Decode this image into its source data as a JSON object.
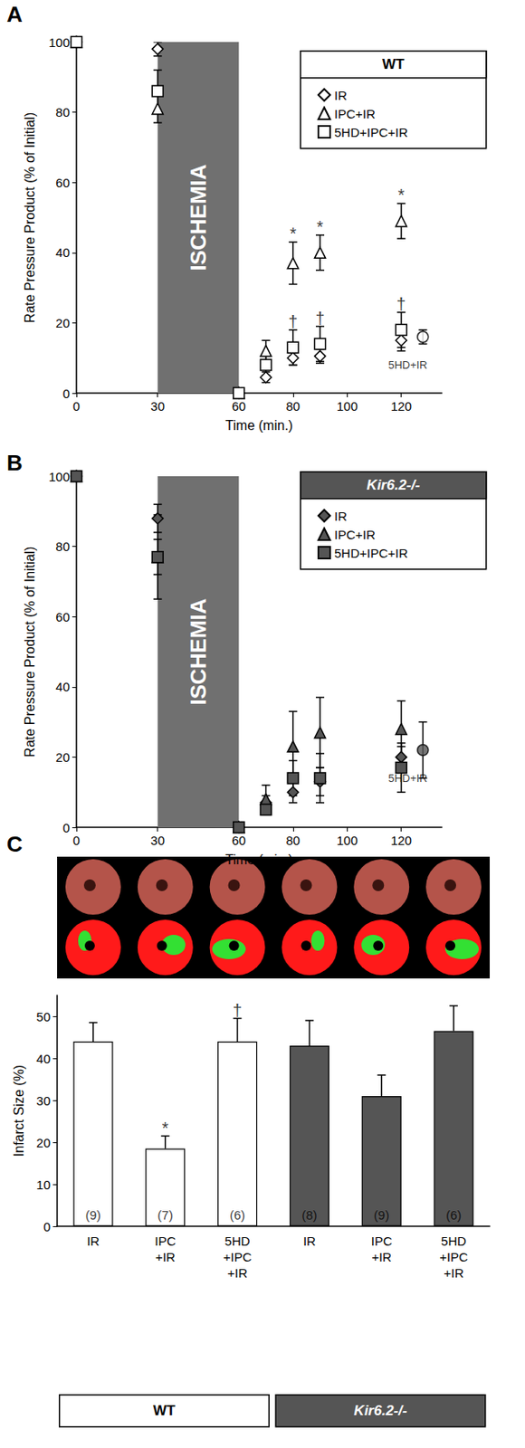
{
  "chart_data": [
    {
      "panel": "A",
      "type": "scatter",
      "legend_title": "WT",
      "legend": "upper right",
      "grid": false,
      "x_label": "Time (min.)",
      "y_label": "Rate Pressure Product (% of Initial)",
      "xlim": [
        0,
        135
      ],
      "xticks": [
        0,
        30,
        60,
        80,
        100,
        120
      ],
      "ylim": [
        0,
        100
      ],
      "yticks": [
        0,
        20,
        40,
        60,
        80,
        100
      ],
      "shaded": {
        "label": "ISCHEMIA",
        "from": 30,
        "to": 60
      },
      "x": [
        0,
        30,
        60,
        70,
        80,
        90,
        120
      ],
      "series": [
        {
          "name": "IR",
          "marker": "diamond",
          "color": "#ffffff",
          "values": [
            100,
            98,
            0,
            4.5,
            10,
            10.5,
            15
          ],
          "errors": [
            null,
            2,
            null,
            1.5,
            2,
            2,
            3
          ]
        },
        {
          "name": "IPC+IR",
          "marker": "triangle",
          "color": "#ffffff",
          "values": [
            100,
            81,
            0,
            12,
            37,
            40,
            49
          ],
          "errors": [
            null,
            4,
            null,
            3,
            6,
            5,
            5
          ]
        },
        {
          "name": "5HD+IPC+IR",
          "marker": "square",
          "color": "#ffffff",
          "values": [
            100,
            86,
            0,
            8,
            13,
            14,
            18
          ],
          "errors": [
            null,
            6,
            null,
            3,
            5,
            5,
            5
          ]
        }
      ],
      "extra_point": {
        "label": "5HD+IR",
        "x": 128,
        "value": 16,
        "error": 2,
        "marker": "circle",
        "color": "#ffffff"
      },
      "significance": [
        {
          "x": 80,
          "series": "IPC+IR",
          "mark": "*"
        },
        {
          "x": 90,
          "series": "IPC+IR",
          "mark": "*"
        },
        {
          "x": 120,
          "series": "IPC+IR",
          "mark": "*"
        },
        {
          "x": 80,
          "series": "5HD+IPC+IR",
          "mark": "†"
        },
        {
          "x": 90,
          "series": "5HD+IPC+IR",
          "mark": "†"
        },
        {
          "x": 120,
          "series": "5HD+IPC+IR",
          "mark": "†"
        }
      ]
    },
    {
      "panel": "B",
      "type": "scatter",
      "legend_title": "Kir6.2-/-",
      "legend": "upper right",
      "grid": false,
      "x_label": "Time (min.)",
      "y_label": "Rate Pressure Product (% of Initial)",
      "xlim": [
        0,
        135
      ],
      "xticks": [
        0,
        30,
        60,
        80,
        100,
        120
      ],
      "ylim": [
        0,
        100
      ],
      "yticks": [
        0,
        20,
        40,
        60,
        80,
        100
      ],
      "shaded": {
        "label": "ISCHEMIA",
        "from": 30,
        "to": 60
      },
      "x": [
        0,
        30,
        60,
        70,
        80,
        90,
        120
      ],
      "series": [
        {
          "name": "IR",
          "marker": "diamond",
          "color": "#555555",
          "values": [
            100,
            88,
            0,
            7,
            10,
            13,
            20
          ],
          "errors": [
            null,
            4,
            null,
            2,
            3,
            4,
            3
          ]
        },
        {
          "name": "IPC+IR",
          "marker": "triangle",
          "color": "#555555",
          "values": [
            100,
            77,
            0,
            8,
            23,
            27,
            28
          ],
          "errors": [
            null,
            12,
            null,
            4,
            10,
            10,
            8
          ]
        },
        {
          "name": "5HD+IPC+IR",
          "marker": "square",
          "color": "#555555",
          "values": [
            100,
            77,
            0,
            5,
            14,
            14,
            17
          ],
          "errors": [
            null,
            5,
            null,
            1,
            5,
            7,
            7
          ]
        }
      ],
      "extra_point": {
        "label": "5HD+IR",
        "x": 128,
        "value": 22,
        "error": 8,
        "marker": "circle",
        "color": "#555555"
      },
      "significance": []
    },
    {
      "panel": "C",
      "type": "bar",
      "grid": false,
      "y_label": "Infarct Size (%)",
      "categories": [
        "IR",
        "IPC+IR",
        "5HD+IPC+IR",
        "IR",
        "IPC+IR",
        "5HD+IPC+IR"
      ],
      "values": [
        44,
        18.5,
        44,
        43,
        31,
        46.5
      ],
      "errors": [
        4.5,
        3,
        5.5,
        6,
        5,
        6
      ],
      "colors": [
        "#ffffff",
        "#ffffff",
        "#ffffff",
        "#555555",
        "#555555",
        "#555555"
      ],
      "n": [
        "(9)",
        "(7)",
        "(6)",
        "(8)",
        "(9)",
        "(6)"
      ],
      "marks": [
        null,
        "*",
        "†",
        null,
        null,
        null
      ],
      "groups": [
        {
          "label": "WT",
          "size": 3,
          "color": "#ffffff"
        },
        {
          "label": "Kir6.2-/-",
          "size": 3,
          "color": "#555555"
        }
      ],
      "ylim": [
        0,
        55
      ],
      "yticks": [
        0,
        10,
        20,
        30,
        40,
        50
      ]
    }
  ]
}
